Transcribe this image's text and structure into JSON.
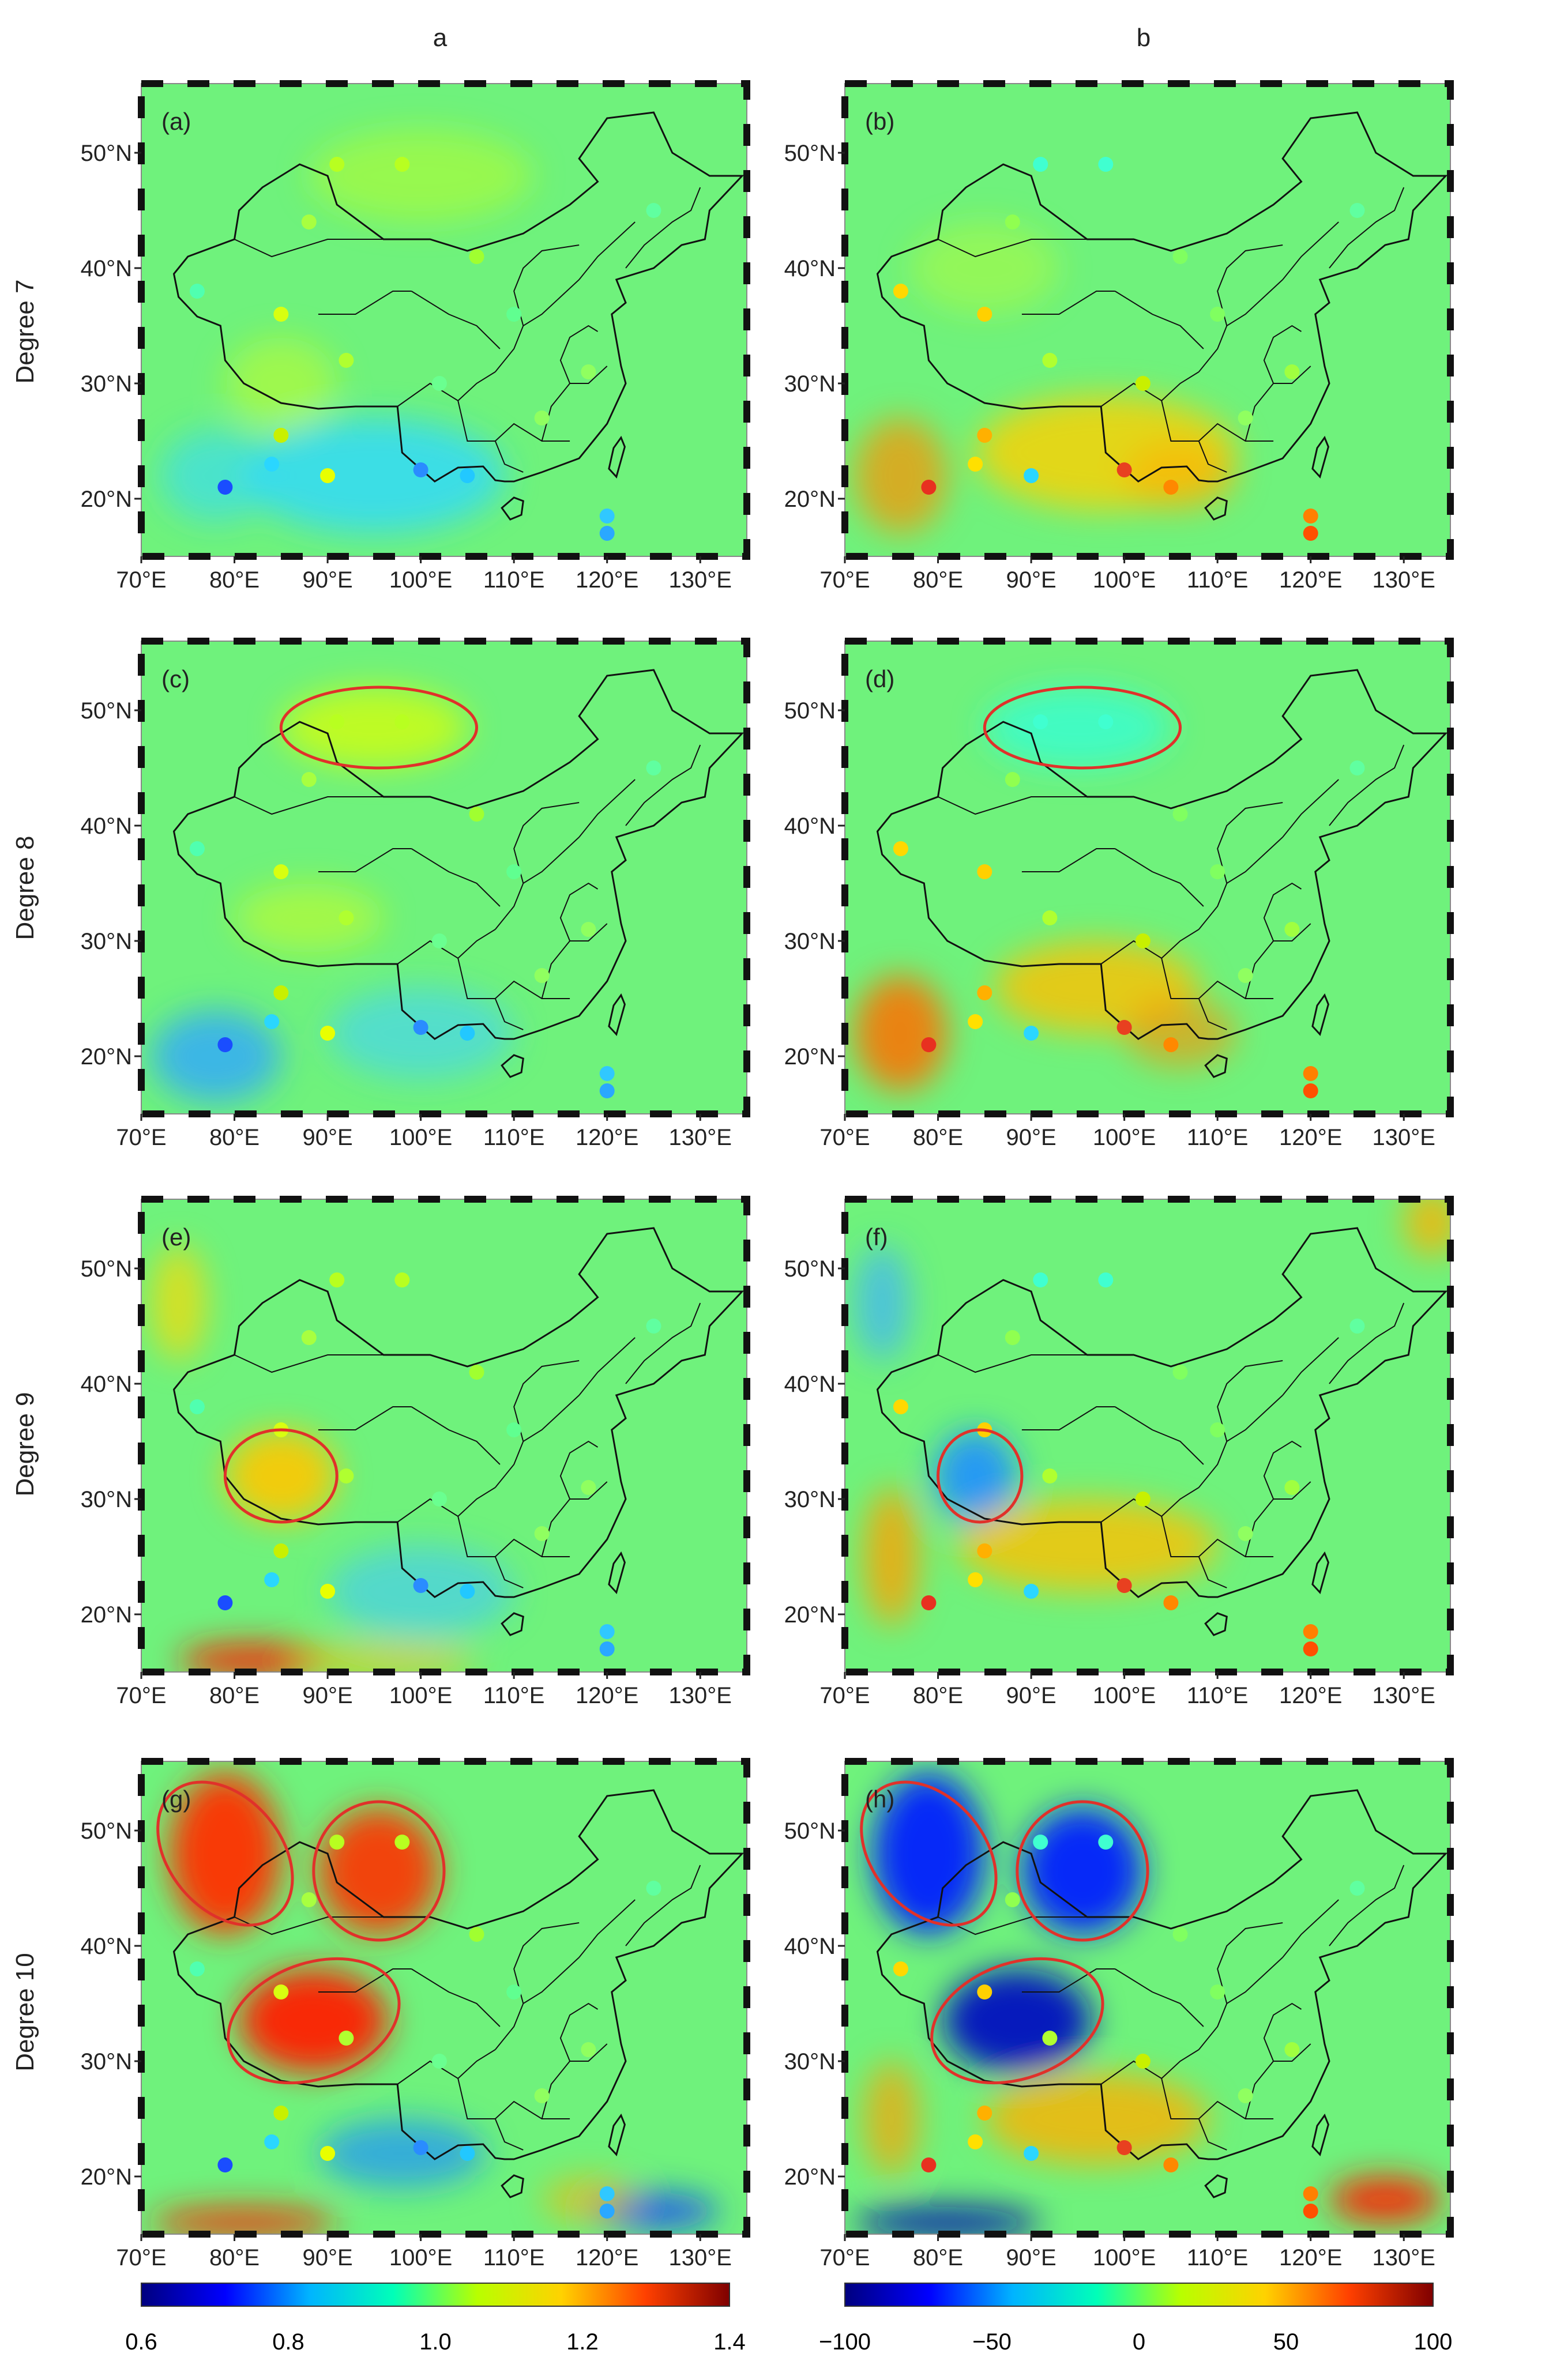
{
  "columns": [
    "a",
    "b"
  ],
  "rows": [
    "Degree 7",
    "Degree 8",
    "Degree 9",
    "Degree 10"
  ],
  "panel_labels": [
    "(a)",
    "(b)",
    "(c)",
    "(d)",
    "(e)",
    "(f)",
    "(g)",
    "(h)"
  ],
  "lat_ticks": [
    "20°N",
    "30°N",
    "40°N",
    "50°N"
  ],
  "lon_ticks": [
    "70°E",
    "80°E",
    "90°E",
    "100°E",
    "110°E",
    "120°E",
    "130°E"
  ],
  "map_extent": {
    "lon_min": 70,
    "lon_max": 135,
    "lat_min": 15,
    "lat_max": 56
  },
  "colorbars": [
    {
      "min": 0.6,
      "max": 1.4,
      "ticks": [
        "0.6",
        "0.8",
        "1.0",
        "1.2",
        "1.4"
      ],
      "stops": [
        "#00007f",
        "#0000ff",
        "#00b4ff",
        "#00ffb8",
        "#b8ff00",
        "#ffd200",
        "#ff4000",
        "#7f0000"
      ]
    },
    {
      "min": -100,
      "max": 100,
      "ticks": [
        "−100",
        "−50",
        "0",
        "50",
        "100"
      ],
      "stops": [
        "#00007f",
        "#0000ff",
        "#00b4ff",
        "#00ffb8",
        "#b8ff00",
        "#ffd200",
        "#ff4000",
        "#7f0000"
      ]
    }
  ],
  "highlight_color": "#e0312a",
  "highlight_regions": {
    "c": [
      {
        "lon": 95.5,
        "lat": 48.5,
        "rlon": 10.5,
        "rlat": 3.5
      }
    ],
    "d": [
      {
        "lon": 95.5,
        "lat": 48.5,
        "rlon": 10.5,
        "rlat": 3.5
      }
    ],
    "e": [
      {
        "lon": 85.0,
        "lat": 32.0,
        "rlon": 6.0,
        "rlat": 4.0
      }
    ],
    "f": [
      {
        "lon": 84.5,
        "lat": 32.0,
        "rlon": 4.5,
        "rlat": 4.0
      }
    ],
    "g": [
      {
        "lon": 79.0,
        "lat": 48.0,
        "rlon": 6.0,
        "rlat": 7.0,
        "rot": -40
      },
      {
        "lon": 95.5,
        "lat": 46.5,
        "rlon": 7.0,
        "rlat": 6.0
      },
      {
        "lon": 88.5,
        "lat": 33.5,
        "rlon": 9.5,
        "rlat": 5.0,
        "rot": -20
      }
    ],
    "h": [
      {
        "lon": 79.0,
        "lat": 48.0,
        "rlon": 6.0,
        "rlat": 7.0,
        "rot": -40
      },
      {
        "lon": 95.5,
        "lat": 46.5,
        "rlon": 7.0,
        "rlat": 6.0
      },
      {
        "lon": 88.5,
        "lat": 33.5,
        "rlon": 9.5,
        "rlat": 5.0,
        "rot": -20
      }
    ]
  }
}
